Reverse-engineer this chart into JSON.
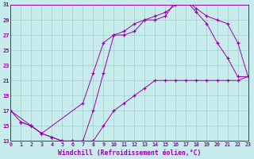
{
  "xlabel": "Windchill (Refroidissement éolien,°C)",
  "xlim": [
    0,
    23
  ],
  "ylim": [
    13,
    31
  ],
  "xticks": [
    0,
    1,
    2,
    3,
    4,
    5,
    6,
    7,
    8,
    9,
    10,
    11,
    12,
    13,
    14,
    15,
    16,
    17,
    18,
    19,
    20,
    21,
    22,
    23
  ],
  "yticks": [
    13,
    15,
    17,
    19,
    21,
    23,
    25,
    27,
    29,
    31
  ],
  "bg_color": "#c8ecec",
  "grid_color": "#9fcfcf",
  "line_color": "#9900aa",
  "curve1_x": [
    0,
    1,
    2,
    3,
    4,
    5,
    6,
    7,
    8,
    9,
    10,
    11,
    12,
    13,
    14,
    15,
    16,
    17,
    18,
    19,
    20,
    21,
    22,
    23
  ],
  "curve1_y": [
    17,
    15.5,
    15,
    14,
    13.5,
    13,
    13,
    13,
    17,
    22,
    27,
    27,
    27.5,
    29,
    29,
    29.5,
    31.5,
    31.5,
    30,
    28.5,
    26,
    24,
    21.5,
    21.5
  ],
  "curve2_x": [
    0,
    2,
    3,
    7,
    8,
    9,
    10,
    11,
    12,
    13,
    14,
    15,
    16,
    17,
    18,
    19,
    20,
    21,
    22,
    23
  ],
  "curve2_y": [
    17,
    15,
    14,
    18,
    22,
    26,
    27,
    27.5,
    28.5,
    29,
    29.5,
    30,
    31,
    31.5,
    30.5,
    29.5,
    29,
    28.5,
    26,
    21.5
  ],
  "curve3_x": [
    1,
    2,
    3,
    4,
    5,
    6,
    7,
    8,
    9,
    10,
    11,
    12,
    13,
    14,
    15,
    16,
    17,
    18,
    19,
    20,
    21,
    22,
    23
  ],
  "curve3_y": [
    15.5,
    15,
    14,
    13.5,
    13,
    13,
    13,
    13,
    15,
    17,
    18,
    19,
    20,
    21,
    21,
    21,
    21,
    21,
    21,
    21,
    21,
    21,
    21.5
  ]
}
